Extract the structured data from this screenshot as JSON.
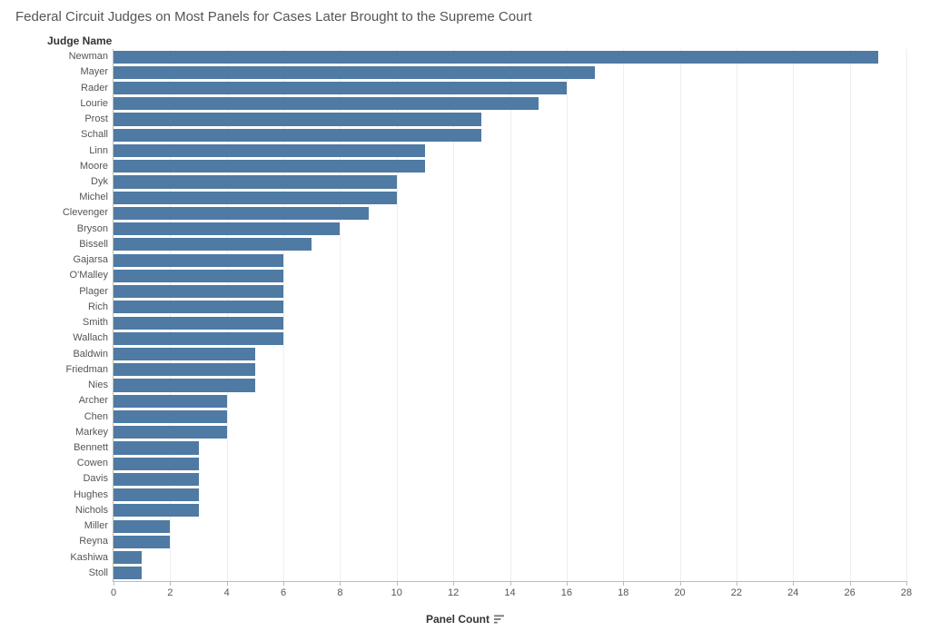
{
  "chart": {
    "type": "bar-horizontal",
    "title": "Federal Circuit Judges on Most Panels for Cases Later Brought to the Supreme Court",
    "y_axis_title": "Judge Name",
    "x_axis_title": "Panel Count",
    "bar_color": "#4f7aa3",
    "background_color": "#ffffff",
    "gridline_color": "#eeeeee",
    "axis_line_color": "#bbbbbb",
    "label_color": "#555555",
    "title_color": "#555555",
    "axis_title_color": "#333333",
    "title_fontsize": 15,
    "y_axis_title_fontsize": 12,
    "x_axis_title_fontsize": 12,
    "label_fontsize": 11,
    "tick_fontsize": 11,
    "xlim": [
      0,
      28
    ],
    "xtick_step": 2,
    "xticks": [
      0,
      2,
      4,
      6,
      8,
      10,
      12,
      14,
      16,
      18,
      20,
      22,
      24,
      26,
      28
    ],
    "bar_gap_ratio": 0.18,
    "sort_icon": "sort-descending",
    "judges": [
      {
        "name": "Newman",
        "value": 27
      },
      {
        "name": "Mayer",
        "value": 17
      },
      {
        "name": "Rader",
        "value": 16
      },
      {
        "name": "Lourie",
        "value": 15
      },
      {
        "name": "Prost",
        "value": 13
      },
      {
        "name": "Schall",
        "value": 13
      },
      {
        "name": "Linn",
        "value": 11
      },
      {
        "name": "Moore",
        "value": 11
      },
      {
        "name": "Dyk",
        "value": 10
      },
      {
        "name": "Michel",
        "value": 10
      },
      {
        "name": "Clevenger",
        "value": 9
      },
      {
        "name": "Bryson",
        "value": 8
      },
      {
        "name": "Bissell",
        "value": 7
      },
      {
        "name": "Gajarsa",
        "value": 6
      },
      {
        "name": "O'Malley",
        "value": 6
      },
      {
        "name": "Plager",
        "value": 6
      },
      {
        "name": "Rich",
        "value": 6
      },
      {
        "name": "Smith",
        "value": 6
      },
      {
        "name": "Wallach",
        "value": 6
      },
      {
        "name": "Baldwin",
        "value": 5
      },
      {
        "name": "Friedman",
        "value": 5
      },
      {
        "name": "Nies",
        "value": 5
      },
      {
        "name": "Archer",
        "value": 4
      },
      {
        "name": "Chen",
        "value": 4
      },
      {
        "name": "Markey",
        "value": 4
      },
      {
        "name": "Bennett",
        "value": 3
      },
      {
        "name": "Cowen",
        "value": 3
      },
      {
        "name": "Davis",
        "value": 3
      },
      {
        "name": "Hughes",
        "value": 3
      },
      {
        "name": "Nichols",
        "value": 3
      },
      {
        "name": "Miller",
        "value": 2
      },
      {
        "name": "Reyna",
        "value": 2
      },
      {
        "name": "Kashiwa",
        "value": 1
      },
      {
        "name": "Stoll",
        "value": 1
      }
    ]
  }
}
